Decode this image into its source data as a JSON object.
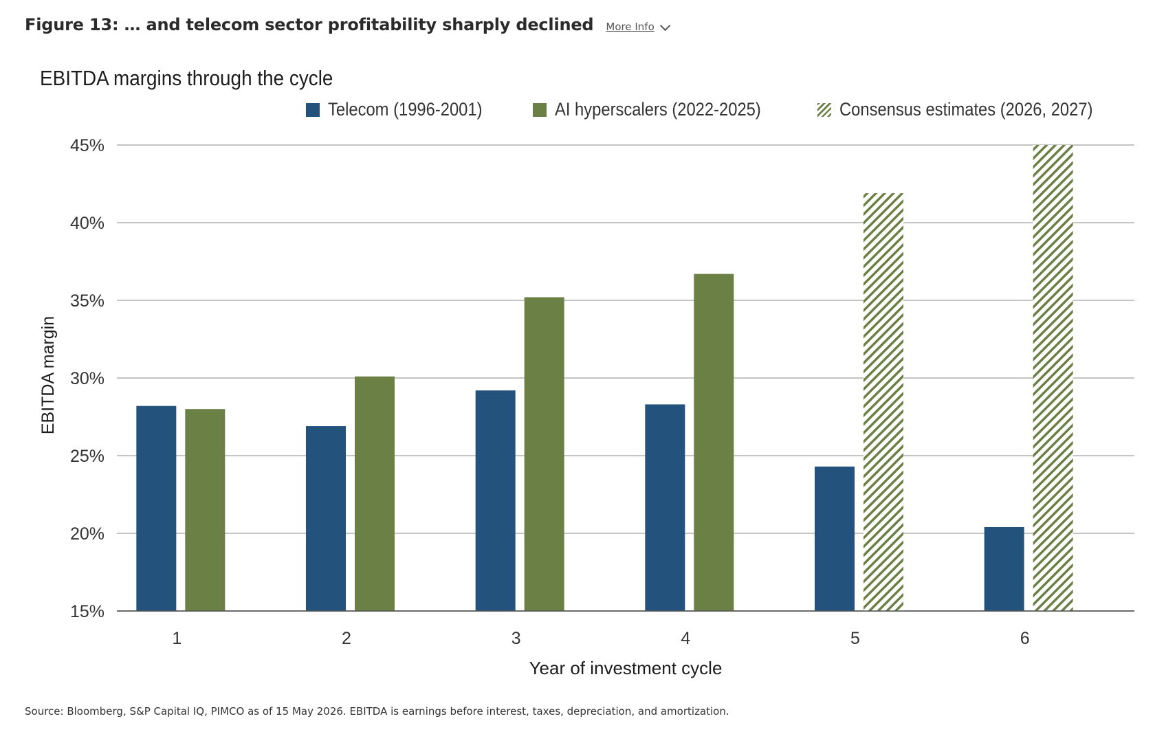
{
  "figure": {
    "title": "Figure 13: … and telecom sector profitability sharply declined",
    "more_info_label": "More Info"
  },
  "source_note": "Source: Bloomberg, S&P Capital IQ, PIMCO as of 15 May 2026. EBITDA is earnings before interest, taxes, depreciation, and amortization.",
  "chart_data": {
    "type": "bar",
    "title": "EBITDA margins through the cycle",
    "xlabel": "Year of investment cycle",
    "ylabel": "EBITDA margin",
    "categories": [
      "1",
      "2",
      "3",
      "4",
      "5",
      "6"
    ],
    "ylim": [
      15,
      45
    ],
    "yticks": [
      15,
      20,
      25,
      30,
      35,
      40,
      45
    ],
    "ytick_labels": [
      "15%",
      "20%",
      "25%",
      "30%",
      "35%",
      "40%",
      "45%"
    ],
    "grid": "horizontal",
    "legend_position": "top-right",
    "series": [
      {
        "name": "Telecom (1996-2001)",
        "color": "#23527c",
        "style": "solid",
        "values": [
          28.2,
          26.9,
          29.2,
          28.3,
          24.3,
          20.4
        ]
      },
      {
        "name": "AI hyperscalers (2022-2025)",
        "color": "#6a8044",
        "style": "solid",
        "values": [
          28.0,
          30.1,
          35.2,
          36.7,
          null,
          null
        ]
      },
      {
        "name": "Consensus estimates (2026, 2027)",
        "color": "#6a8044",
        "style": "hatched",
        "values": [
          null,
          null,
          null,
          null,
          41.9,
          45.0
        ]
      }
    ]
  }
}
